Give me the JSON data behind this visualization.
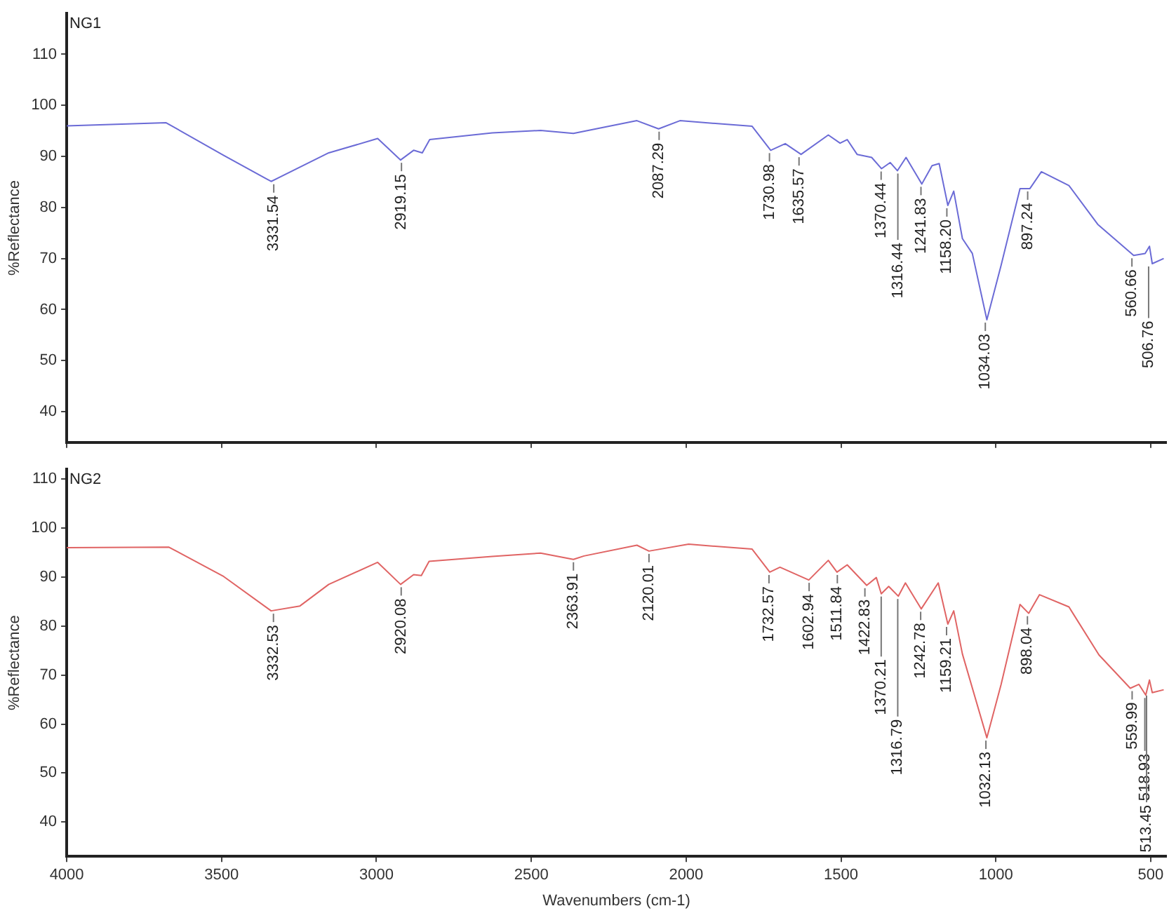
{
  "chart_data": [
    {
      "type": "line",
      "title": "NG1",
      "ylabel": "%Reflectance",
      "tick_labels": "y",
      "x": [
        4000,
        3679,
        3493,
        3340,
        3154,
        2996,
        2922,
        2880,
        2852,
        2828,
        2626,
        2470,
        2364,
        2159,
        2089,
        2020,
        1787,
        1727,
        1680,
        1629,
        1541,
        1503,
        1480,
        1448,
        1401,
        1369,
        1341,
        1318,
        1290,
        1239,
        1206,
        1183,
        1155,
        1136,
        1108,
        1076,
        1029,
        983,
        922,
        890,
        853,
        764,
        671,
        555,
        518,
        504,
        495,
        458
      ],
      "series": [
        {
          "color": "#6b6bd6",
          "values": [
            96.0,
            96.6,
            90.2,
            85.1,
            90.7,
            93.5,
            89.3,
            91.2,
            90.7,
            93.3,
            94.6,
            95.1,
            94.5,
            97.0,
            95.4,
            97.0,
            95.9,
            91.2,
            92.5,
            90.4,
            94.2,
            92.6,
            93.3,
            90.4,
            89.8,
            87.6,
            88.8,
            87.2,
            89.8,
            84.6,
            88.2,
            88.6,
            80.4,
            83.2,
            73.9,
            71.0,
            58.0,
            68.7,
            83.7,
            83.7,
            87.0,
            84.3,
            76.7,
            70.6,
            71.0,
            72.4,
            69.0,
            70.0
          ]
        }
      ],
      "xlim": [
        4000,
        450
      ],
      "xticks": [
        4000,
        3500,
        3000,
        2500,
        2000,
        1500,
        1000,
        500
      ],
      "ylim": [
        34,
        118
      ],
      "yticks": [
        40,
        50,
        60,
        70,
        80,
        90,
        100,
        110
      ],
      "annotations": [
        {
          "text": "3331.54",
          "x": 3331.54,
          "y": 85.1
        },
        {
          "text": "2919.15",
          "x": 2919.15,
          "y": 89.3
        },
        {
          "text": "2087.29",
          "x": 2087.29,
          "y": 95.4
        },
        {
          "text": "1730.98",
          "x": 1730.98,
          "y": 91.2
        },
        {
          "text": "1635.57",
          "x": 1635.57,
          "y": 90.4
        },
        {
          "text": "1370.44",
          "x": 1370.44,
          "y": 87.6
        },
        {
          "text": "1316.44",
          "x": 1316.44,
          "y": 87.2
        },
        {
          "text": "1241.83",
          "x": 1241.83,
          "y": 84.6
        },
        {
          "text": "1158.20",
          "x": 1158.2,
          "y": 80.4
        },
        {
          "text": "1034.03",
          "x": 1034.03,
          "y": 58.0
        },
        {
          "text": "897.24",
          "x": 897.24,
          "y": 83.7
        },
        {
          "text": "560.66",
          "x": 560.66,
          "y": 70.6
        },
        {
          "text": "506.76",
          "x": 506.76,
          "y": 69.0
        }
      ]
    },
    {
      "type": "line",
      "title": "NG2",
      "ylabel": "%Reflectance",
      "xlabel": "Wavenumbers (cm-1)",
      "x": [
        4000,
        3670,
        3493,
        3340,
        3247,
        3154,
        2996,
        2922,
        2880,
        2855,
        2830,
        2626,
        2470,
        2364,
        2330,
        2159,
        2120,
        1992,
        1787,
        1730,
        1697,
        1604,
        1541,
        1513,
        1480,
        1417,
        1386,
        1370,
        1346,
        1315,
        1292,
        1241,
        1186,
        1155,
        1136,
        1108,
        1029,
        983,
        922,
        894,
        859,
        764,
        667,
        566,
        538,
        516,
        504,
        495,
        458
      ],
      "series": [
        {
          "color": "#e06464",
          "values": [
            96.0,
            96.1,
            90.1,
            83.1,
            84.1,
            88.5,
            93.0,
            88.5,
            90.5,
            90.3,
            93.2,
            94.2,
            94.9,
            93.6,
            94.3,
            96.5,
            95.3,
            96.7,
            95.7,
            91.0,
            92.0,
            89.4,
            93.4,
            91.0,
            92.5,
            88.3,
            89.9,
            86.6,
            88.1,
            86.1,
            88.8,
            83.5,
            88.8,
            80.4,
            83.1,
            74.3,
            57.2,
            68.1,
            84.4,
            82.6,
            86.4,
            83.9,
            74.1,
            67.3,
            68.1,
            65.9,
            69.0,
            66.4,
            67.0
          ]
        }
      ],
      "xlim": [
        4000,
        450
      ],
      "xticks": [
        4000,
        3500,
        3000,
        2500,
        2000,
        1500,
        1000,
        500
      ],
      "ylim": [
        33,
        112
      ],
      "yticks": [
        40,
        50,
        60,
        70,
        80,
        90,
        100,
        110
      ],
      "annotations": [
        {
          "text": "3332.53",
          "x": 3332.53,
          "y": 83.1
        },
        {
          "text": "2920.08",
          "x": 2920.08,
          "y": 88.5
        },
        {
          "text": "2363.91",
          "x": 2363.91,
          "y": 93.6
        },
        {
          "text": "2120.01",
          "x": 2120.01,
          "y": 95.3
        },
        {
          "text": "1732.57",
          "x": 1732.57,
          "y": 91.0
        },
        {
          "text": "1602.94",
          "x": 1602.94,
          "y": 89.4
        },
        {
          "text": "1511.84",
          "x": 1511.84,
          "y": 91.0
        },
        {
          "text": "1422.83",
          "x": 1422.83,
          "y": 88.3
        },
        {
          "text": "1370.21",
          "x": 1370.21,
          "y": 86.6
        },
        {
          "text": "1316.79",
          "x": 1316.79,
          "y": 86.1
        },
        {
          "text": "1242.78",
          "x": 1242.78,
          "y": 83.5
        },
        {
          "text": "1159.21",
          "x": 1159.21,
          "y": 80.4
        },
        {
          "text": "1032.13",
          "x": 1032.13,
          "y": 57.2
        },
        {
          "text": "898.04",
          "x": 898.04,
          "y": 82.6
        },
        {
          "text": "559.99",
          "x": 559.99,
          "y": 67.3
        },
        {
          "text": "518.93",
          "x": 518.93,
          "y": 65.9
        },
        {
          "text": "513.45",
          "x": 513.45,
          "y": 66.4
        }
      ]
    }
  ]
}
